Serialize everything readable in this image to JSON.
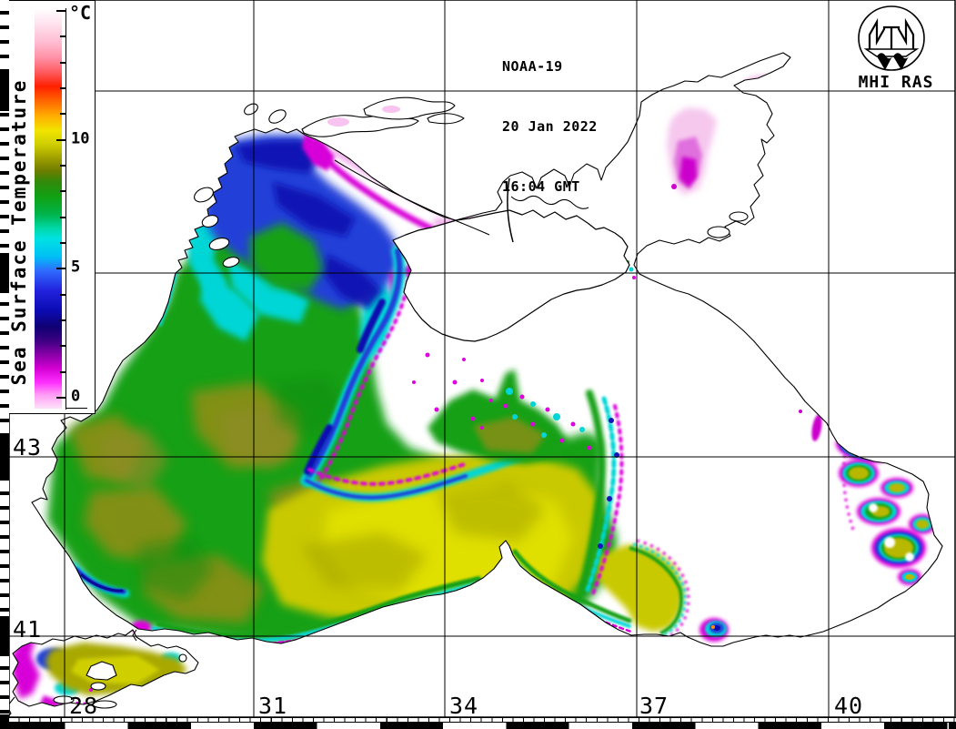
{
  "title_block": {
    "satellite": "NOAA-19",
    "date": "20 Jan 2022",
    "time": "16:04 GMT"
  },
  "logo": {
    "label": "MHI RAS"
  },
  "colorbar": {
    "title": "Sea Surface Temperature",
    "unit_label": "°C",
    "value_min": 0,
    "value_max": 15,
    "minor_tick_step": 1,
    "labeled_ticks": [
      {
        "value": 10,
        "label": "10"
      },
      {
        "value": 5,
        "label": "5"
      },
      {
        "value": 0,
        "label": "0"
      }
    ],
    "gradient_stops": [
      {
        "at": 0.0,
        "color": "#ffffff"
      },
      {
        "at": 0.04,
        "color": "#ffe2ee"
      },
      {
        "at": 0.085,
        "color": "#ffbcd2"
      },
      {
        "at": 0.125,
        "color": "#ff8fa4"
      },
      {
        "at": 0.16,
        "color": "#ff5a5f"
      },
      {
        "at": 0.195,
        "color": "#ff2000"
      },
      {
        "at": 0.235,
        "color": "#ff6c00"
      },
      {
        "at": 0.27,
        "color": "#ffae00"
      },
      {
        "at": 0.305,
        "color": "#f2e400"
      },
      {
        "at": 0.34,
        "color": "#cfcf00"
      },
      {
        "at": 0.375,
        "color": "#9e9e00"
      },
      {
        "at": 0.405,
        "color": "#6f7d00"
      },
      {
        "at": 0.435,
        "color": "#2f8a0a"
      },
      {
        "at": 0.47,
        "color": "#12a012"
      },
      {
        "at": 0.515,
        "color": "#00b44b"
      },
      {
        "at": 0.55,
        "color": "#00d8a8"
      },
      {
        "at": 0.575,
        "color": "#00e2e2"
      },
      {
        "at": 0.62,
        "color": "#00c0f5"
      },
      {
        "at": 0.655,
        "color": "#2f6cff"
      },
      {
        "at": 0.705,
        "color": "#2222dd"
      },
      {
        "at": 0.755,
        "color": "#0b0bb4"
      },
      {
        "at": 0.795,
        "color": "#0f0073"
      },
      {
        "at": 0.83,
        "color": "#3c0082"
      },
      {
        "at": 0.865,
        "color": "#8800a8"
      },
      {
        "at": 0.9,
        "color": "#d400d4"
      },
      {
        "at": 0.935,
        "color": "#ff30ff"
      },
      {
        "at": 0.965,
        "color": "#ff9cf5"
      },
      {
        "at": 1.0,
        "color": "#ffe2fa"
      }
    ]
  },
  "axes": {
    "longitude_labels": [
      {
        "label": "28"
      },
      {
        "label": "31"
      },
      {
        "label": "34"
      },
      {
        "label": "37"
      },
      {
        "label": "40"
      }
    ],
    "latitude_labels": [
      {
        "label": "43"
      },
      {
        "label": "41"
      }
    ]
  },
  "palette": {
    "sea_green": "#16a016",
    "dark_green": "#0c8a0c",
    "olive": "#8e8e16",
    "brown_olive": "#9c8a2a",
    "yellow": "#c9c900",
    "bright_yellow": "#e2e200",
    "cyan": "#00d6d6",
    "blue": "#2340d8",
    "dark_blue": "#0d0dae",
    "navy": "#0a0a96",
    "magenta": "#dd00dd",
    "deep_magenta": "#cc00cc",
    "pale_pink": "#f4b4ee",
    "cloud_white": "#ffffff",
    "coastline": "#000000",
    "grid": "#000000",
    "warm_dot_orange": "#ff8c00"
  }
}
